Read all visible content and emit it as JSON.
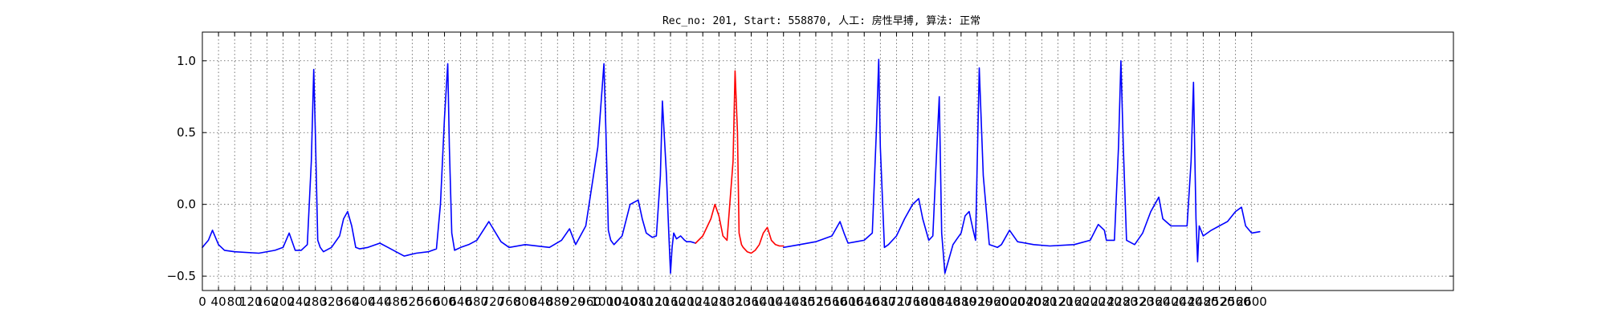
{
  "chart_data": {
    "type": "line",
    "title": "Rec_no: 201, Start: 558870, 人工: 房性早搏, 算法: 正常",
    "xlabel": "",
    "ylabel": "",
    "xlim": [
      0,
      3100
    ],
    "ylim": [
      -0.6,
      1.2
    ],
    "grid": true,
    "yticks": [
      1.0,
      0.5,
      0.0,
      -0.5
    ],
    "ytick_labels": [
      "1.0",
      "0.5",
      "0.0",
      "−0.5"
    ],
    "xticks": [
      0,
      40,
      80,
      120,
      160,
      200,
      240,
      280,
      320,
      360,
      400,
      440,
      480,
      520,
      560,
      600,
      640,
      680,
      720,
      760,
      800,
      840,
      880,
      920,
      960,
      1000,
      1040,
      1080,
      1120,
      1160,
      1200,
      1240,
      1280,
      1320,
      1360,
      1400,
      1440,
      1480,
      1520,
      1560,
      1600,
      1640,
      1680,
      1720,
      1760,
      1800,
      1840,
      1880,
      1920,
      1960,
      2000,
      2040,
      2080,
      2120,
      2160,
      2200,
      2240,
      2280,
      2320,
      2360,
      2400,
      2440,
      2480,
      2520,
      2560,
      2600
    ],
    "xtick_labels": [
      "0",
      "40",
      "80",
      "120",
      "160",
      "200",
      "240",
      "280",
      "320",
      "360",
      "400",
      "440",
      "480",
      "520",
      "560",
      "600",
      "640",
      "680",
      "720",
      "760",
      "800",
      "840",
      "880",
      "920",
      "960",
      "1000",
      "1040",
      "1080",
      "1120",
      "1160",
      "1200",
      "1240",
      "1280",
      "1320",
      "1360",
      "1400",
      "1440",
      "1480",
      "1520",
      "1560",
      "1600",
      "1640",
      "1680",
      "1720",
      "1760",
      "1800",
      "1840",
      "1880",
      "1920",
      "1960",
      "2000",
      "2040",
      "2080",
      "2120",
      "2160",
      "2200",
      "2240",
      "2280",
      "2320",
      "2360",
      "2400",
      "2440",
      "2480",
      "2520",
      "2560",
      "2600"
    ],
    "series": [
      {
        "color": "#0000ff",
        "x": [
          0,
          15,
          25,
          40,
          55,
          80,
          140,
          180,
          200,
          215,
          230,
          245,
          260,
          270,
          276,
          280,
          286,
          292,
          300,
          320,
          340,
          350,
          360,
          370,
          380,
          390,
          410,
          440,
          460,
          480,
          500,
          530,
          560,
          580,
          590,
          600,
          608,
          612,
          618,
          625,
          640,
          660,
          680,
          710,
          740,
          760,
          800,
          860,
          890,
          910,
          925,
          950,
          980,
          995,
          1000,
          1006,
          1012,
          1020,
          1040,
          1060,
          1080,
          1090,
          1100,
          1115,
          1125,
          1135,
          1140,
          1150,
          1156,
          1160,
          1164,
          1168,
          1175,
          1185,
          1195,
          1200,
          1210,
          1222
        ],
        "y": [
          -0.3,
          -0.25,
          -0.18,
          -0.28,
          -0.32,
          -0.33,
          -0.34,
          -0.32,
          -0.3,
          -0.2,
          -0.32,
          -0.32,
          -0.28,
          0.3,
          0.94,
          0.5,
          -0.25,
          -0.3,
          -0.33,
          -0.3,
          -0.22,
          -0.1,
          -0.05,
          -0.15,
          -0.3,
          -0.31,
          -0.3,
          -0.27,
          -0.3,
          -0.33,
          -0.36,
          -0.34,
          -0.33,
          -0.31,
          0.0,
          0.6,
          0.98,
          0.4,
          -0.2,
          -0.32,
          -0.3,
          -0.28,
          -0.25,
          -0.12,
          -0.26,
          -0.3,
          -0.28,
          -0.3,
          -0.25,
          -0.17,
          -0.28,
          -0.15,
          0.4,
          0.98,
          0.5,
          -0.18,
          -0.25,
          -0.28,
          -0.22,
          0.0,
          0.03,
          -0.1,
          -0.2,
          -0.23,
          -0.22,
          0.2,
          0.72,
          0.2,
          -0.22,
          -0.48,
          -0.3,
          -0.2,
          -0.24,
          -0.22,
          -0.25,
          -0.26,
          -0.26,
          -0.27
        ]
      },
      {
        "color": "#ff0000",
        "x": [
          1222,
          1240,
          1260,
          1270,
          1280,
          1290,
          1300,
          1315,
          1320,
          1326,
          1330,
          1336,
          1340,
          1350,
          1360,
          1370,
          1380,
          1390,
          1400,
          1410,
          1420,
          1430,
          1440
        ],
        "y": [
          -0.27,
          -0.22,
          -0.1,
          0.0,
          -0.08,
          -0.22,
          -0.25,
          0.3,
          0.93,
          0.5,
          -0.2,
          -0.28,
          -0.3,
          -0.33,
          -0.34,
          -0.32,
          -0.28,
          -0.2,
          -0.16,
          -0.25,
          -0.28,
          -0.29,
          -0.29
        ]
      },
      {
        "color": "#0000ff",
        "x": [
          1440,
          1480,
          1520,
          1560,
          1580,
          1590,
          1600,
          1620,
          1640,
          1660,
          1670,
          1676,
          1680,
          1690,
          1700,
          1720,
          1740,
          1760,
          1775,
          1785,
          1800,
          1810,
          1820,
          1826,
          1832,
          1840,
          1860,
          1870,
          1880,
          1890,
          1900,
          1910,
          1916,
          1920,
          1925,
          1935,
          1950,
          1970,
          1980,
          2000,
          2020,
          2060,
          2100,
          2160,
          2200,
          2220,
          2235,
          2240,
          2260,
          2270,
          2276,
          2282,
          2290,
          2310,
          2330,
          2350,
          2360,
          2370,
          2380,
          2400,
          2420,
          2440,
          2450,
          2456,
          2462,
          2466,
          2470,
          2480,
          2500,
          2520,
          2540,
          2560,
          2575,
          2585,
          2600,
          2620
        ],
        "y": [
          -0.3,
          -0.28,
          -0.26,
          -0.22,
          -0.12,
          -0.2,
          -0.27,
          -0.26,
          -0.25,
          -0.2,
          0.5,
          1.01,
          0.4,
          -0.3,
          -0.28,
          -0.22,
          -0.1,
          0.0,
          0.04,
          -0.1,
          -0.25,
          -0.22,
          0.4,
          0.75,
          -0.2,
          -0.48,
          -0.28,
          -0.24,
          -0.2,
          -0.08,
          -0.05,
          -0.18,
          -0.25,
          0.3,
          0.95,
          0.2,
          -0.28,
          -0.3,
          -0.28,
          -0.18,
          -0.26,
          -0.28,
          -0.29,
          -0.28,
          -0.25,
          -0.14,
          -0.18,
          -0.25,
          -0.25,
          0.4,
          1.0,
          0.4,
          -0.25,
          -0.28,
          -0.2,
          -0.05,
          0.0,
          0.05,
          -0.1,
          -0.15,
          -0.15,
          -0.15,
          0.3,
          0.85,
          -0.1,
          -0.4,
          -0.15,
          -0.22,
          -0.18,
          -0.15,
          -0.12,
          -0.05,
          -0.02,
          -0.15,
          -0.2,
          -0.19
        ]
      }
    ]
  }
}
